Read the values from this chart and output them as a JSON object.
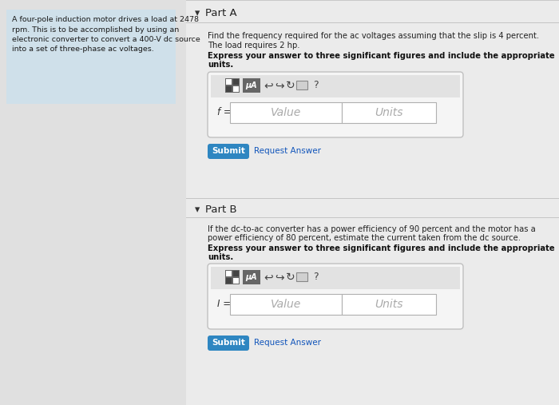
{
  "bg_color": "#e0e0e0",
  "left_panel_bg": "#cfe0ea",
  "left_panel_text": "A four-pole induction motor drives a load at 2478\nrpm. This is to be accomplished by using an\nelectronic converter to convert a 400-V dc source\ninto a set of three-phase ac voltages.",
  "right_panel_bg": "#ebebeb",
  "part_a_header": "Part A",
  "part_a_desc1": "Find the frequency required for the ac voltages assuming that the slip is 4 percent.",
  "part_a_desc2": "The load requires 2 hp.",
  "part_a_bold": "Express your answer to three significant figures and include the appropriate\nunits.",
  "part_a_label": "f =",
  "part_b_header": "Part B",
  "part_b_desc": "If the dc-to-ac converter has a power efficiency of 90 percent and the motor has a\npower efficiency of 80 percent, estimate the current taken from the dc source.",
  "part_b_bold": "Express your answer to three significant figures and include the appropriate\nunits.",
  "part_b_label": "I =",
  "value_placeholder": "Value",
  "units_placeholder": "Units",
  "submit_btn_color": "#2e86c1",
  "submit_btn_text": "Submit",
  "request_answer_text": "Request Answer",
  "toolbar_dark": "#5a5a5a",
  "input_box_bg": "#ffffff",
  "question_mark": "?",
  "mu_a_text": "μA",
  "toolbar_outer_bg": "#e8e8e8",
  "input_border": "#b0b0b0",
  "outer_box_border": "#c0c0c0"
}
